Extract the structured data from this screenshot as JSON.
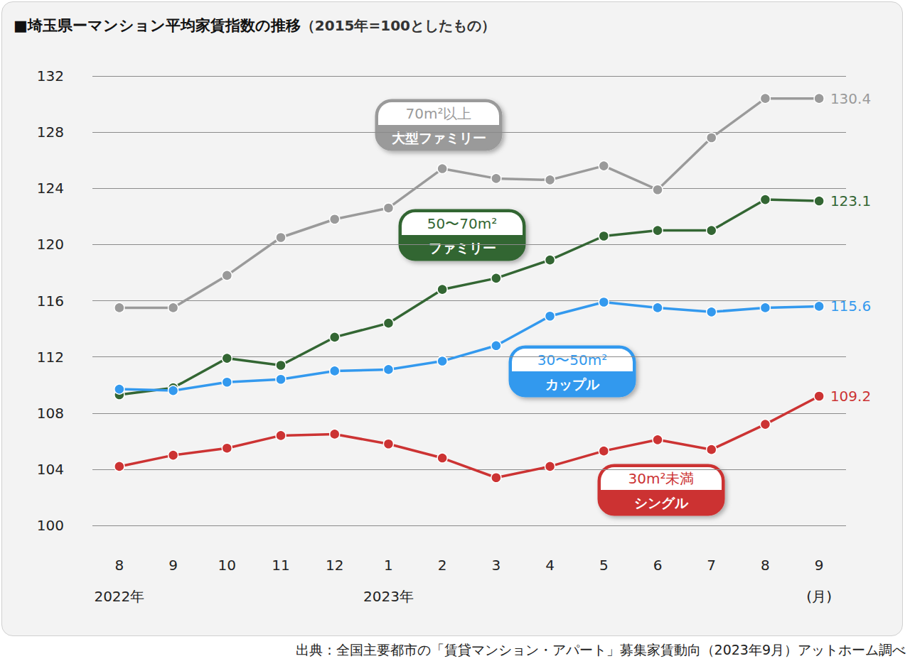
{
  "chart_data": {
    "type": "line",
    "title": "■埼玉県ーマンション平均家賃指数の推移",
    "subtitle": "（2015年=100としたもの）",
    "source": "出典：全国主要都市の「賃貸マンション・アパート」募集家賃動向（2023年9月）アットホーム調べ",
    "categories": [
      "8\n2022年",
      "9",
      "10",
      "11",
      "12",
      "1\n2023年",
      "2",
      "3",
      "4",
      "5",
      "6",
      "7",
      "8",
      "9\n(月)"
    ],
    "ylim": [
      100,
      132
    ],
    "yticks": [
      100,
      104,
      108,
      112,
      116,
      120,
      124,
      128,
      132
    ],
    "grid": true,
    "marker": "circle",
    "series": [
      {
        "name": "大型ファミリー",
        "area": "70m²以上",
        "color": "#9a9a9a",
        "values": [
          115.5,
          115.5,
          117.8,
          120.5,
          121.8,
          122.6,
          125.4,
          124.7,
          124.6,
          125.6,
          123.9,
          127.6,
          130.4,
          130.4
        ],
        "value_labels": [
          null,
          null,
          null,
          null,
          null,
          null,
          null,
          null,
          null,
          null,
          null,
          null,
          null,
          "130.4"
        ]
      },
      {
        "name": "ファミリー",
        "area": "50〜70m²",
        "color": "#336633",
        "values": [
          109.3,
          109.8,
          111.9,
          111.4,
          113.4,
          114.4,
          116.8,
          117.6,
          118.9,
          120.6,
          121.0,
          121.0,
          123.2,
          123.1
        ],
        "value_labels": [
          null,
          null,
          null,
          null,
          null,
          null,
          null,
          null,
          null,
          null,
          null,
          null,
          null,
          "123.1"
        ]
      },
      {
        "name": "カップル",
        "area": "30〜50m²",
        "color": "#3399ee",
        "values": [
          109.7,
          109.6,
          110.2,
          110.4,
          111.0,
          111.1,
          111.7,
          112.8,
          114.9,
          115.9,
          115.5,
          115.2,
          115.5,
          115.6
        ],
        "value_labels": [
          null,
          null,
          null,
          null,
          null,
          null,
          null,
          null,
          null,
          null,
          null,
          null,
          null,
          "115.6"
        ]
      },
      {
        "name": "シングル",
        "area": "30m²未満",
        "color": "#cc3333",
        "values": [
          104.2,
          105.0,
          105.5,
          106.4,
          106.5,
          105.8,
          104.8,
          103.4,
          104.2,
          105.3,
          106.1,
          105.4,
          107.2,
          109.2
        ],
        "value_labels": [
          null,
          null,
          null,
          null,
          null,
          null,
          null,
          null,
          null,
          null,
          null,
          null,
          null,
          "109.2"
        ]
      }
    ]
  }
}
